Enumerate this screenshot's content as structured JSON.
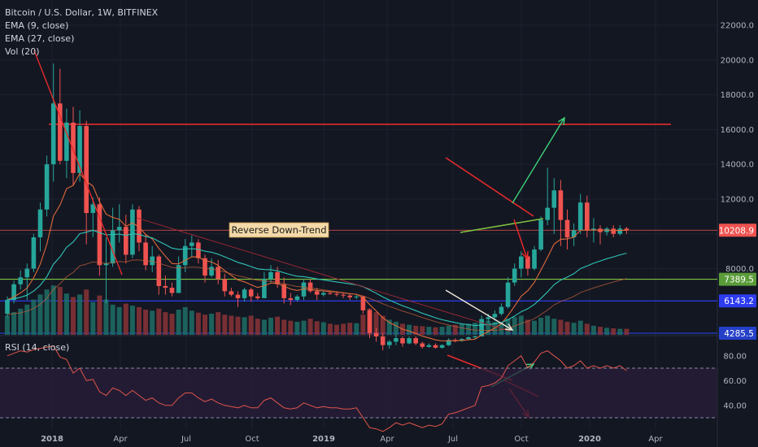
{
  "header": {
    "title": "Bitcoin / U.S. Dollar, 1W, BITFINEX",
    "ema9": "EMA (9, close)",
    "ema27": "EMA (27, close)",
    "vol": "Vol (20)"
  },
  "rsi_label": "RSI (14, close)",
  "annotation": "Reverse Down-Trend",
  "colors": {
    "background": "#131722",
    "up": "#26a69a",
    "down": "#ef5350",
    "ema9": "#e0693a",
    "ema27": "#2ec4b6",
    "rsi_line": "#e0544b",
    "rsi_band": "#2a1e3a",
    "resistance": "#e52b2b",
    "support_green": "#7fc241",
    "support_blue": "#2e3cf0",
    "support_navy": "#2540c8",
    "current_price": "#ef5350",
    "arrow_green": "#3fd27b",
    "arrow_red": "#ef2a2a",
    "arrow_white": "#f0e8d8"
  },
  "chart_data": {
    "type": "candlestick",
    "price_axis": {
      "ticks": [
        22000,
        20000,
        18000,
        16000,
        14000,
        12000,
        10000,
        8000
      ],
      "labels": [
        "22000.0",
        "20000.0",
        "18000.0",
        "16000.0",
        "14000.0",
        "12000.0",
        "10000.0",
        "8000.0"
      ],
      "range": [
        4000,
        23000
      ]
    },
    "rsi_axis": {
      "ticks": [
        80,
        60,
        40
      ],
      "labels": [
        "80.00",
        "60.00",
        "40.00"
      ],
      "overbought": 70,
      "oversold": 30
    },
    "date_ticks": [
      "2018",
      "Apr",
      "Jul",
      "Oct",
      "2019",
      "Apr",
      "Jul",
      "Oct",
      "2020",
      "Apr"
    ],
    "price_badges": [
      {
        "value": 10208.9,
        "label": "10208.9"
      },
      {
        "value": 7389.5,
        "label": "7389.5"
      },
      {
        "value": 6143.2,
        "label": "6143.2"
      },
      {
        "value": 4285.5,
        "label": "4285.5"
      }
    ],
    "horizontal_levels": [
      16300,
      10208.9,
      7389.5,
      6143.2,
      4285.5
    ],
    "candles": [
      [
        5400,
        6400,
        5200,
        6200
      ],
      [
        6200,
        7300,
        6000,
        7100
      ],
      [
        7100,
        7900,
        6800,
        7500
      ],
      [
        7500,
        8300,
        6200,
        8000
      ],
      [
        8000,
        10000,
        7800,
        9800
      ],
      [
        9800,
        11800,
        9000,
        11400
      ],
      [
        11400,
        14500,
        11000,
        14000
      ],
      [
        14000,
        19800,
        13000,
        17500
      ],
      [
        17500,
        19500,
        14000,
        14200
      ],
      [
        14200,
        17200,
        13200,
        16400
      ],
      [
        16400,
        17300,
        12800,
        13500
      ],
      [
        13500,
        17100,
        13000,
        16200
      ],
      [
        16200,
        16500,
        9400,
        11200
      ],
      [
        11200,
        12100,
        9800,
        11700
      ],
      [
        11700,
        12100,
        7600,
        8200
      ],
      [
        8200,
        9800,
        6000,
        8300
      ],
      [
        8300,
        11500,
        8100,
        10200
      ],
      [
        10200,
        11700,
        9500,
        10400
      ],
      [
        10400,
        11100,
        8300,
        8800
      ],
      [
        8800,
        11700,
        8600,
        11400
      ],
      [
        11400,
        11600,
        9000,
        9500
      ],
      [
        9500,
        10000,
        7900,
        8200
      ],
      [
        8200,
        9300,
        7800,
        8700
      ],
      [
        8700,
        8800,
        6500,
        7000
      ],
      [
        7000,
        7600,
        6500,
        6900
      ],
      [
        6900,
        7200,
        6400,
        6600
      ],
      [
        6600,
        8700,
        6600,
        8200
      ],
      [
        8200,
        9700,
        7800,
        9300
      ],
      [
        9300,
        9900,
        8700,
        9500
      ],
      [
        9500,
        9700,
        8300,
        8600
      ],
      [
        8600,
        8800,
        7200,
        7600
      ],
      [
        7600,
        8600,
        7500,
        8100
      ],
      [
        8100,
        8500,
        7100,
        7400
      ],
      [
        7400,
        7700,
        6400,
        6700
      ],
      [
        6700,
        6900,
        6400,
        6500
      ],
      [
        6500,
        6700,
        5800,
        6300
      ],
      [
        6300,
        6900,
        6100,
        6800
      ],
      [
        6800,
        6900,
        6100,
        6400
      ],
      [
        6400,
        6600,
        6200,
        6300
      ],
      [
        6300,
        7800,
        6300,
        7400
      ],
      [
        7400,
        8200,
        7200,
        7800
      ],
      [
        7800,
        8100,
        6900,
        7100
      ],
      [
        7100,
        7500,
        6000,
        6300
      ],
      [
        6300,
        6600,
        5900,
        6200
      ],
      [
        6200,
        6500,
        6100,
        6400
      ],
      [
        6400,
        7400,
        6200,
        7200
      ],
      [
        7200,
        7400,
        6600,
        6700
      ],
      [
        6700,
        6900,
        6200,
        6500
      ],
      [
        6500,
        6700,
        6400,
        6600
      ],
      [
        6600,
        6700,
        6500,
        6550
      ],
      [
        6550,
        6700,
        6400,
        6500
      ],
      [
        6500,
        6600,
        6300,
        6450
      ],
      [
        6450,
        6550,
        6200,
        6350
      ],
      [
        6350,
        6500,
        6250,
        6400
      ],
      [
        6400,
        6450,
        5400,
        5600
      ],
      [
        5600,
        5700,
        4000,
        4300
      ],
      [
        4300,
        4600,
        3800,
        4100
      ],
      [
        4100,
        4300,
        3300,
        3600
      ],
      [
        3600,
        3900,
        3400,
        3800
      ],
      [
        3800,
        4200,
        3600,
        4000
      ],
      [
        4000,
        4100,
        3500,
        3700
      ],
      [
        3700,
        4100,
        3650,
        4000
      ],
      [
        4000,
        4100,
        3600,
        3700
      ],
      [
        3700,
        3800,
        3400,
        3500
      ],
      [
        3500,
        3700,
        3450,
        3600
      ],
      [
        3600,
        3700,
        3400,
        3450
      ],
      [
        3450,
        3650,
        3400,
        3600
      ],
      [
        3600,
        4000,
        3550,
        3900
      ],
      [
        3900,
        4000,
        3750,
        3850
      ],
      [
        3850,
        4000,
        3800,
        3950
      ],
      [
        3950,
        4100,
        3900,
        4050
      ],
      [
        4050,
        4150,
        3950,
        4100
      ],
      [
        4100,
        5300,
        4100,
        5100
      ],
      [
        5100,
        5400,
        4900,
        5200
      ],
      [
        5200,
        5600,
        5000,
        5400
      ],
      [
        5400,
        6000,
        5300,
        5800
      ],
      [
        5800,
        7500,
        5700,
        7200
      ],
      [
        7200,
        8300,
        7000,
        8000
      ],
      [
        8000,
        9000,
        7500,
        8700
      ],
      [
        8700,
        8900,
        7600,
        8000
      ],
      [
        8000,
        9300,
        7900,
        9100
      ],
      [
        9100,
        11000,
        9000,
        10800
      ],
      [
        10800,
        13800,
        10500,
        11500
      ],
      [
        11500,
        13200,
        10000,
        12500
      ],
      [
        12500,
        13100,
        9300,
        10800
      ],
      [
        10800,
        11400,
        9100,
        9800
      ],
      [
        9800,
        10600,
        9300,
        10200
      ],
      [
        10200,
        12300,
        10000,
        11800
      ],
      [
        11800,
        12200,
        9800,
        10200
      ],
      [
        10200,
        10900,
        9500,
        10300
      ],
      [
        10300,
        10500,
        9400,
        10100
      ],
      [
        10100,
        10400,
        9900,
        10300
      ],
      [
        10300,
        10500,
        9800,
        10000
      ],
      [
        10000,
        10500,
        9900,
        10300
      ],
      [
        10300,
        10400,
        10000,
        10209
      ]
    ],
    "volumes": [
      38,
      45,
      52,
      60,
      70,
      80,
      90,
      98,
      95,
      82,
      75,
      80,
      90,
      65,
      78,
      70,
      60,
      55,
      62,
      58,
      55,
      50,
      48,
      52,
      45,
      42,
      50,
      55,
      48,
      44,
      40,
      42,
      45,
      40,
      38,
      36,
      35,
      38,
      32,
      30,
      34,
      36,
      30,
      28,
      26,
      28,
      32,
      27,
      25,
      22,
      20,
      22,
      24,
      23,
      40,
      52,
      45,
      38,
      30,
      26,
      22,
      20,
      18,
      17,
      16,
      15,
      16,
      18,
      20,
      21,
      22,
      24,
      30,
      28,
      26,
      24,
      32,
      35,
      38,
      30,
      28,
      34,
      38,
      32,
      30,
      26,
      24,
      28,
      22,
      18,
      16,
      14,
      13,
      12,
      12
    ],
    "rsi": [
      80,
      82,
      84,
      83,
      85,
      86,
      87,
      88,
      79,
      77,
      66,
      70,
      60,
      61,
      51,
      48,
      54,
      52,
      48,
      52,
      48,
      44,
      46,
      42,
      40,
      40,
      46,
      50,
      50,
      46,
      43,
      45,
      42,
      40,
      39,
      38,
      40,
      38,
      38,
      44,
      46,
      42,
      38,
      37,
      38,
      42,
      40,
      38,
      39,
      38,
      38,
      37,
      37,
      38,
      30,
      22,
      21,
      19,
      22,
      26,
      24,
      26,
      24,
      22,
      24,
      23,
      25,
      33,
      34,
      36,
      38,
      40,
      55,
      56,
      58,
      62,
      72,
      76,
      80,
      70,
      75,
      82,
      84,
      80,
      76,
      70,
      72,
      76,
      70,
      72,
      70,
      72,
      70,
      72,
      68
    ]
  }
}
